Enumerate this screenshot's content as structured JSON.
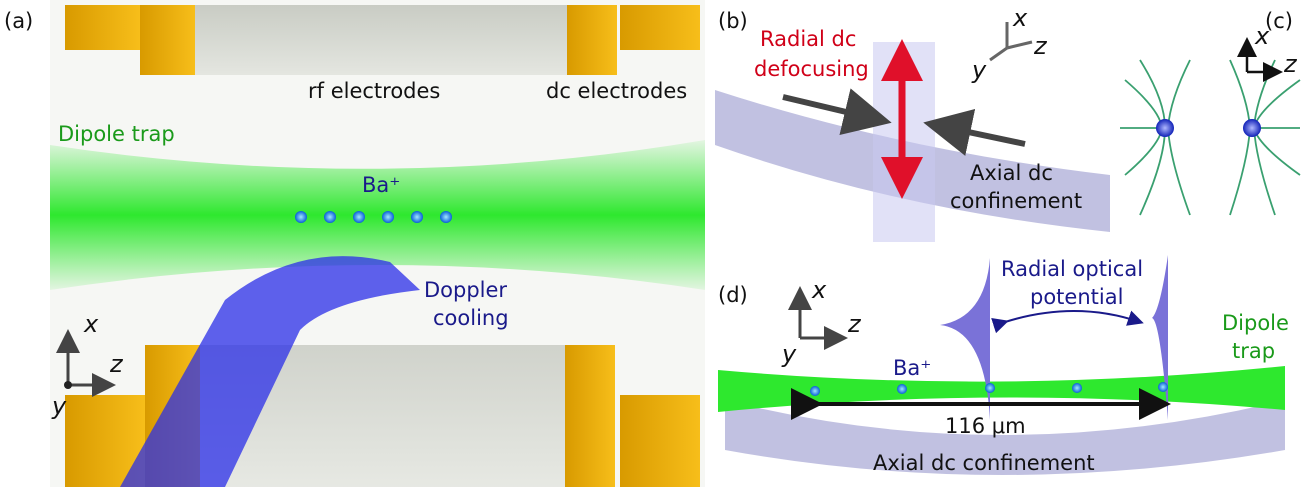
{
  "panel_a": {
    "label": "(a)",
    "rf_electrodes": "rf electrodes",
    "dc_electrodes": "dc electrodes",
    "dipole_trap": "Dipole trap",
    "ion": "Ba⁺",
    "doppler_cooling": [
      "Doppler",
      "cooling"
    ],
    "axes": {
      "x": "x",
      "y": "y",
      "z": "z"
    }
  },
  "panel_b": {
    "label": "(b)",
    "radial_dc": [
      "Radial dc",
      "defocusing"
    ],
    "axial_dc": [
      "Axial dc",
      "confinement"
    ],
    "axes": {
      "x": "x",
      "y": "y",
      "z": "z"
    }
  },
  "panel_c": {
    "label": "(c)",
    "axes": {
      "x": "x",
      "z": "z"
    }
  },
  "panel_d": {
    "label": "(d)",
    "radial_optical": [
      "Radial optical",
      "potential"
    ],
    "dipole_trap": [
      "Dipole",
      "trap"
    ],
    "ion": "Ba⁺",
    "distance": "116 μm",
    "axial_dc": "Axial dc confinement",
    "axes": {
      "x": "x",
      "y": "y",
      "z": "z"
    }
  }
}
